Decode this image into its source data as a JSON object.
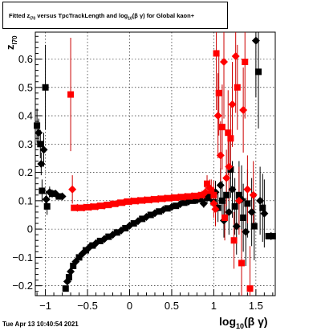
{
  "title": {
    "prefix": "Fitted  z",
    "sub1": "I70",
    "mid": " versus TpcTrackLength and log",
    "sub2": "10",
    "paren": "(β γ)",
    "suffix": " for Global kaon+"
  },
  "timestamp": "Tue Apr 13 10:40:54 2021",
  "colors": {
    "black_series": "#000000",
    "red_series": "#ff0000",
    "red_error": "#cc0000"
  },
  "chart_data": {
    "type": "scatter",
    "title": "Fitted z_I70 versus TpcTrackLength and log10(βγ) for Global kaon+",
    "xlabel": "log10(β γ)",
    "ylabel": "z_I70",
    "xlim": [
      -1.12,
      1.73
    ],
    "ylim": [
      -0.235,
      0.695
    ],
    "grid": true,
    "xticks": [
      -1,
      -0.5,
      0,
      0.5,
      1,
      1.5
    ],
    "xtick_labels": [
      "−1",
      "−0.5",
      "0",
      "0.5",
      "1",
      "1.5"
    ],
    "yticks": [
      -0.2,
      -0.1,
      0,
      0.1,
      0.2,
      0.3,
      0.4,
      0.5,
      0.6
    ],
    "ytick_labels": [
      "−0.2",
      "−0.1",
      "0",
      "0.1",
      "0.2",
      "0.3",
      "0.4",
      "0.5",
      "0.6"
    ],
    "series": [
      {
        "color": "black",
        "points": [
          [
            -1.1,
            0.365,
            0.06
          ],
          [
            -1.08,
            0.34,
            0.05
          ],
          [
            -1.06,
            0.3,
            0.05
          ],
          [
            -1.05,
            0.23,
            0.04
          ],
          [
            -1.04,
            0.135,
            0.04
          ],
          [
            -1.02,
            0.28,
            0.06
          ],
          [
            -1.0,
            0.5,
            0.15
          ],
          [
            -0.99,
            0.105,
            0.03
          ],
          [
            -0.98,
            0.08,
            0.03
          ],
          [
            -0.95,
            0.13,
            0.02
          ],
          [
            -0.92,
            0.125,
            0.015
          ],
          [
            -0.88,
            0.125,
            0.01
          ],
          [
            -0.84,
            0.115,
            0.01
          ],
          [
            -0.8,
            0.115,
            0.008
          ],
          [
            -0.76,
            -0.21,
            0.01
          ],
          [
            -0.74,
            -0.185,
            0.008
          ],
          [
            -0.72,
            -0.17,
            0.006
          ],
          [
            -0.7,
            -0.15,
            0.005
          ],
          [
            -0.67,
            -0.13,
            0.004
          ],
          [
            -0.64,
            -0.115,
            0.004
          ],
          [
            -0.6,
            -0.1,
            0.003
          ],
          [
            -0.56,
            -0.087,
            0.003
          ],
          [
            -0.52,
            -0.075,
            0.003
          ],
          [
            -0.48,
            -0.065,
            0.002
          ],
          [
            -0.44,
            -0.058,
            0.002
          ],
          [
            -0.4,
            -0.05,
            0.002
          ],
          [
            -0.35,
            -0.042,
            0.002
          ],
          [
            -0.3,
            -0.035,
            0.002
          ],
          [
            -0.25,
            -0.027,
            0.002
          ],
          [
            -0.2,
            -0.02,
            0.002
          ],
          [
            -0.15,
            -0.012,
            0.002
          ],
          [
            -0.1,
            -0.005,
            0.002
          ],
          [
            -0.05,
            0.003,
            0.002
          ],
          [
            0.0,
            0.012,
            0.002
          ],
          [
            0.05,
            0.02,
            0.002
          ],
          [
            0.1,
            0.028,
            0.002
          ],
          [
            0.15,
            0.036,
            0.002
          ],
          [
            0.2,
            0.043,
            0.002
          ],
          [
            0.25,
            0.05,
            0.002
          ],
          [
            0.3,
            0.056,
            0.002
          ],
          [
            0.35,
            0.062,
            0.002
          ],
          [
            0.4,
            0.068,
            0.002
          ],
          [
            0.45,
            0.073,
            0.002
          ],
          [
            0.5,
            0.078,
            0.003
          ],
          [
            0.55,
            0.082,
            0.003
          ],
          [
            0.6,
            0.088,
            0.004
          ],
          [
            0.65,
            0.093,
            0.004
          ],
          [
            0.7,
            0.097,
            0.005
          ],
          [
            0.75,
            0.1,
            0.006
          ],
          [
            0.8,
            0.102,
            0.008
          ],
          [
            0.84,
            0.105,
            0.01
          ],
          [
            0.88,
            0.09,
            0.015
          ],
          [
            0.92,
            0.11,
            0.02
          ],
          [
            0.96,
            0.12,
            0.025
          ],
          [
            1.0,
            0.095,
            0.03
          ],
          [
            1.02,
            0.13,
            0.04
          ],
          [
            1.05,
            0.075,
            0.05
          ],
          [
            1.08,
            0.155,
            0.06
          ],
          [
            1.1,
            0.1,
            0.07
          ],
          [
            1.12,
            0.03,
            0.06
          ],
          [
            1.15,
            0.12,
            0.08
          ],
          [
            1.18,
            0.06,
            0.08
          ],
          [
            1.2,
            0.21,
            0.1
          ],
          [
            1.22,
            0.14,
            0.1
          ],
          [
            1.25,
            0.08,
            0.1
          ],
          [
            1.27,
            0.01,
            0.1
          ],
          [
            1.3,
            0.12,
            0.12
          ],
          [
            1.33,
            0.105,
            0.12
          ],
          [
            1.35,
            0.04,
            0.12
          ],
          [
            1.38,
            -0.01,
            0.12
          ],
          [
            1.4,
            0.09,
            0.12
          ],
          [
            1.45,
            0.06,
            0.12
          ],
          [
            1.48,
            0.01,
            0.12
          ],
          [
            1.5,
            0.665,
            0.2
          ],
          [
            1.53,
            0.555,
            0.2
          ],
          [
            1.55,
            0.1,
            0.12
          ],
          [
            1.58,
            0.075,
            0.12
          ],
          [
            1.6,
            0.055,
            0.12
          ],
          [
            1.65,
            -0.025,
            0.01
          ],
          [
            1.68,
            -0.025,
            0.01
          ],
          [
            1.7,
            -0.025,
            0.01
          ]
        ]
      },
      {
        "color": "red",
        "points": [
          [
            -0.7,
            0.475,
            0.2
          ],
          [
            -0.68,
            0.14,
            0.05
          ],
          [
            -0.66,
            0.075,
            0.01
          ],
          [
            -0.62,
            0.075,
            0.006
          ],
          [
            -0.58,
            0.075,
            0.005
          ],
          [
            -0.54,
            0.076,
            0.004
          ],
          [
            -0.5,
            0.077,
            0.004
          ],
          [
            -0.46,
            0.078,
            0.003
          ],
          [
            -0.42,
            0.079,
            0.003
          ],
          [
            -0.38,
            0.08,
            0.003
          ],
          [
            -0.34,
            0.082,
            0.003
          ],
          [
            -0.3,
            0.083,
            0.003
          ],
          [
            -0.26,
            0.085,
            0.003
          ],
          [
            -0.22,
            0.087,
            0.003
          ],
          [
            -0.18,
            0.089,
            0.003
          ],
          [
            -0.14,
            0.091,
            0.003
          ],
          [
            -0.1,
            0.093,
            0.003
          ],
          [
            -0.06,
            0.095,
            0.003
          ],
          [
            -0.02,
            0.097,
            0.003
          ],
          [
            0.02,
            0.098,
            0.003
          ],
          [
            0.06,
            0.099,
            0.003
          ],
          [
            0.1,
            0.1,
            0.003
          ],
          [
            0.14,
            0.101,
            0.003
          ],
          [
            0.18,
            0.102,
            0.003
          ],
          [
            0.22,
            0.103,
            0.003
          ],
          [
            0.26,
            0.104,
            0.003
          ],
          [
            0.3,
            0.105,
            0.003
          ],
          [
            0.34,
            0.106,
            0.003
          ],
          [
            0.38,
            0.107,
            0.003
          ],
          [
            0.42,
            0.108,
            0.003
          ],
          [
            0.46,
            0.109,
            0.003
          ],
          [
            0.5,
            0.11,
            0.004
          ],
          [
            0.54,
            0.111,
            0.004
          ],
          [
            0.58,
            0.112,
            0.004
          ],
          [
            0.62,
            0.113,
            0.004
          ],
          [
            0.66,
            0.114,
            0.004
          ],
          [
            0.7,
            0.115,
            0.005
          ],
          [
            0.74,
            0.116,
            0.006
          ],
          [
            0.78,
            0.117,
            0.008
          ],
          [
            0.82,
            0.118,
            0.01
          ],
          [
            0.86,
            0.12,
            0.015
          ],
          [
            0.9,
            0.13,
            0.02
          ],
          [
            0.92,
            0.16,
            0.03
          ],
          [
            0.95,
            0.145,
            0.03
          ],
          [
            0.97,
            0.135,
            0.04
          ],
          [
            1.0,
            0.09,
            0.05
          ],
          [
            1.0,
            0.12,
            0.05
          ],
          [
            1.02,
            0.07,
            0.06
          ],
          [
            1.03,
            0.62,
            0.2
          ],
          [
            1.05,
            0.4,
            0.15
          ],
          [
            1.06,
            0.48,
            0.15
          ],
          [
            1.08,
            0.26,
            0.12
          ],
          [
            1.1,
            0.36,
            0.15
          ],
          [
            1.12,
            0.59,
            0.2
          ],
          [
            1.13,
            0.04,
            0.08
          ],
          [
            1.15,
            0.18,
            0.1
          ],
          [
            1.17,
            0.34,
            0.15
          ],
          [
            1.18,
            0.22,
            0.12
          ],
          [
            1.2,
            0.32,
            0.12
          ],
          [
            1.22,
            0.44,
            0.15
          ],
          [
            1.24,
            -0.04,
            0.1
          ],
          [
            1.26,
            0.61,
            0.2
          ],
          [
            1.28,
            0.5,
            0.15
          ],
          [
            1.3,
            0.1,
            0.12
          ],
          [
            1.33,
            -0.12,
            0.12
          ],
          [
            1.35,
            0.42,
            0.15
          ],
          [
            1.37,
            0.59,
            0.2
          ],
          [
            1.4,
            0.14,
            0.12
          ],
          [
            1.43,
            -0.21,
            0.15
          ],
          [
            1.47,
            0.12,
            0.12
          ]
        ]
      }
    ]
  }
}
